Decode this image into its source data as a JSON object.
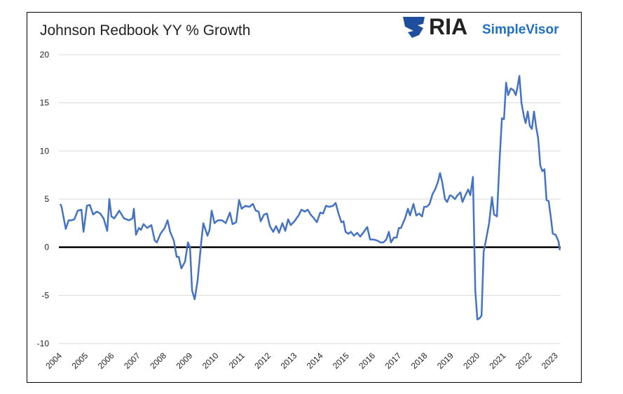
{
  "logo": {
    "main": "RIA",
    "sub": "SimpleVisor"
  },
  "chart_data": {
    "type": "line",
    "title": "Johnson Redbook YY % Growth",
    "x": [
      2004.0,
      2004.05,
      2004.21,
      2004.32,
      2004.43,
      2004.54,
      2004.67,
      2004.81,
      2004.89,
      2005.02,
      2005.13,
      2005.26,
      2005.4,
      2005.53,
      2005.66,
      2005.8,
      2005.88,
      2005.96,
      2006.07,
      2006.26,
      2006.44,
      2006.63,
      2006.77,
      2006.82,
      2006.9,
      2007.01,
      2007.09,
      2007.19,
      2007.33,
      2007.49,
      2007.62,
      2007.7,
      2007.84,
      2008.0,
      2008.11,
      2008.21,
      2008.35,
      2008.46,
      2008.54,
      2008.64,
      2008.78,
      2008.89,
      2008.97,
      2009.05,
      2009.15,
      2009.26,
      2009.4,
      2009.48,
      2009.64,
      2009.72,
      2009.8,
      2009.91,
      2010.04,
      2010.2,
      2010.34,
      2010.5,
      2010.6,
      2010.74,
      2010.85,
      2010.95,
      2011.09,
      2011.25,
      2011.38,
      2011.49,
      2011.6,
      2011.68,
      2011.81,
      2011.92,
      2012.03,
      2012.16,
      2012.27,
      2012.38,
      2012.51,
      2012.62,
      2012.73,
      2012.83,
      2012.97,
      2013.13,
      2013.24,
      2013.37,
      2013.48,
      2013.59,
      2013.72,
      2013.83,
      2013.96,
      2014.07,
      2014.18,
      2014.31,
      2014.45,
      2014.55,
      2014.66,
      2014.77,
      2014.85,
      2014.93,
      2015.04,
      2015.14,
      2015.25,
      2015.38,
      2015.49,
      2015.63,
      2015.76,
      2015.87,
      2016.0,
      2016.14,
      2016.27,
      2016.38,
      2016.49,
      2016.59,
      2016.67,
      2016.78,
      2016.89,
      2016.97,
      2017.05,
      2017.13,
      2017.21,
      2017.32,
      2017.4,
      2017.53,
      2017.64,
      2017.75,
      2017.86,
      2017.94,
      2018.04,
      2018.15,
      2018.26,
      2018.36,
      2018.47,
      2018.55,
      2018.63,
      2018.74,
      2018.82,
      2018.93,
      2019.01,
      2019.12,
      2019.22,
      2019.33,
      2019.41,
      2019.52,
      2019.63,
      2019.71,
      2019.81,
      2019.9,
      2019.98,
      2020.06,
      2020.14,
      2020.22,
      2020.32,
      2020.43,
      2020.54,
      2020.62,
      2020.73,
      2020.83,
      2020.92,
      2021.0,
      2021.08,
      2021.16,
      2021.26,
      2021.37,
      2021.45,
      2021.51,
      2021.59,
      2021.67,
      2021.77,
      2021.83,
      2021.91,
      2021.99,
      2022.07,
      2022.15,
      2022.23,
      2022.31,
      2022.39,
      2022.47,
      2022.55,
      2022.63,
      2022.71,
      2022.79,
      2022.87,
      2022.98,
      2023.09,
      2023.14
    ],
    "series": [
      {
        "name": "Johnson Redbook YY % Growth",
        "color": "#4472c4",
        "values": [
          4.5,
          4.2,
          1.9,
          2.8,
          2.8,
          2.9,
          3.8,
          3.9,
          1.6,
          4.3,
          4.4,
          3.4,
          3.7,
          3.5,
          3.0,
          1.7,
          5.0,
          3.2,
          3.0,
          3.8,
          3.0,
          2.8,
          3.0,
          4.0,
          1.3,
          2.0,
          1.8,
          2.4,
          2.0,
          2.3,
          0.7,
          0.5,
          1.4,
          2.0,
          2.8,
          1.6,
          0.7,
          -1.0,
          -1.0,
          -2.2,
          -1.5,
          0.5,
          0.0,
          -4.5,
          -5.4,
          -3.5,
          0.5,
          2.5,
          1.2,
          1.8,
          3.8,
          2.5,
          2.8,
          2.8,
          2.5,
          3.6,
          2.4,
          2.6,
          4.9,
          4.0,
          4.3,
          4.2,
          4.5,
          3.8,
          3.7,
          2.7,
          3.4,
          3.5,
          2.2,
          1.6,
          2.2,
          1.5,
          2.5,
          1.7,
          2.9,
          2.3,
          2.7,
          3.3,
          3.9,
          3.7,
          3.9,
          3.4,
          3.0,
          2.6,
          3.6,
          3.5,
          4.3,
          4.2,
          4.3,
          4.6,
          3.5,
          2.6,
          2.7,
          1.6,
          1.4,
          1.6,
          1.2,
          1.5,
          1.1,
          1.6,
          2.1,
          0.8,
          0.8,
          0.7,
          0.5,
          0.5,
          0.8,
          1.6,
          0.5,
          1.0,
          1.0,
          2.0,
          2.0,
          2.5,
          3.0,
          4.0,
          3.3,
          4.5,
          3.3,
          3.5,
          3.2,
          4.2,
          4.2,
          4.5,
          5.5,
          6.0,
          6.8,
          7.7,
          6.8,
          5.0,
          4.7,
          5.4,
          5.3,
          5.0,
          5.4,
          5.7,
          4.7,
          5.4,
          6.0,
          5.4,
          7.3,
          -4.5,
          -7.5,
          -7.4,
          -7.1,
          -0.5,
          0.9,
          2.5,
          5.2,
          3.4,
          3.2,
          9.0,
          13.4,
          13.3,
          17.1,
          15.8,
          16.5,
          16.3,
          15.8,
          16.5,
          17.8,
          15.0,
          13.5,
          12.9,
          14.1,
          12.6,
          12.3,
          14.1,
          12.5,
          11.3,
          8.5,
          7.9,
          8.1,
          4.9,
          4.8,
          3.2,
          1.4,
          1.3,
          0.6,
          -0.3
        ]
      }
    ],
    "xlim": [
      2004,
      2023.17
    ],
    "xticks": [
      2004,
      2005,
      2006,
      2007,
      2008,
      2009,
      2010,
      2011,
      2012,
      2013,
      2014,
      2015,
      2016,
      2017,
      2018,
      2019,
      2020,
      2021,
      2022,
      2023
    ],
    "ylim": [
      -10,
      20
    ],
    "yticks": [
      -10,
      -5,
      0,
      5,
      10,
      15,
      20
    ],
    "grid": true
  }
}
